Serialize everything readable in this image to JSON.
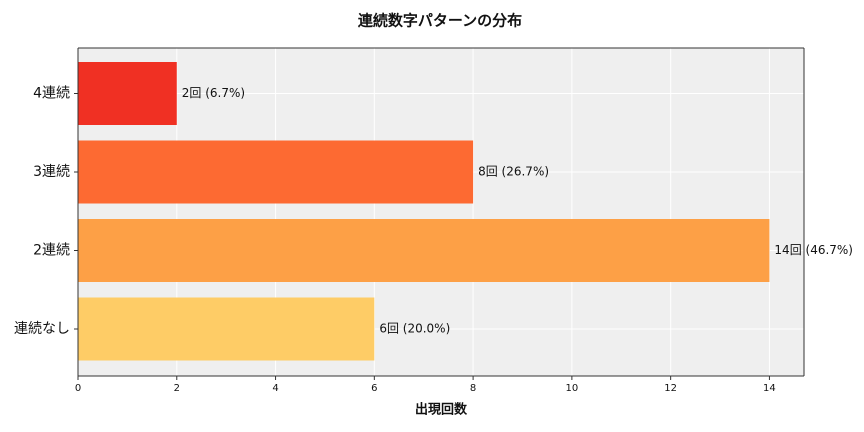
{
  "chart_data": {
    "type": "barh",
    "title": "連続数字パターンの分布",
    "xlabel": "出現回数",
    "categories": [
      "連続なし",
      "2連続",
      "3連続",
      "4連続"
    ],
    "values": [
      6,
      14,
      8,
      2
    ],
    "value_labels": [
      "6回 (20.0%)",
      "14回 (46.7%)",
      "8回 (26.7%)",
      "2回 (6.7%)"
    ],
    "colors": [
      "#fecc66",
      "#fda046",
      "#fd6a32",
      "#f03023"
    ],
    "xlim": [
      0,
      14.7
    ],
    "xticks": [
      0,
      2,
      4,
      6,
      8,
      10,
      12,
      14
    ],
    "grid": true
  }
}
